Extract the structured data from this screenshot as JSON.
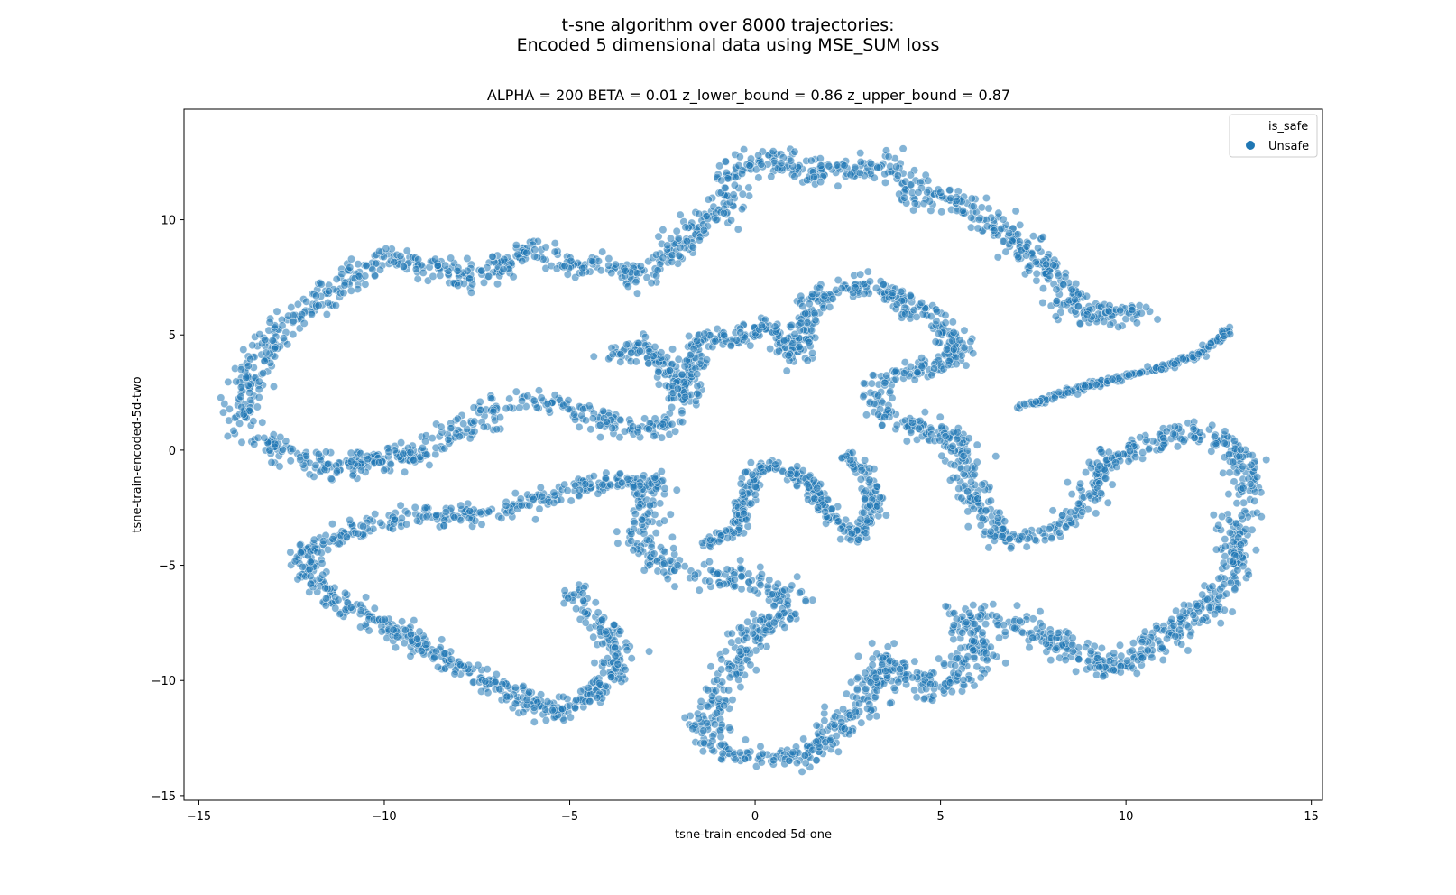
{
  "chart_data": {
    "type": "scatter",
    "suptitle_lines": [
      "t-sne algorithm over 8000 trajectories:",
      "Encoded 5 dimensional data using MSE_SUM loss"
    ],
    "title": "ALPHA = 200  BETA = 0.01  z_lower_bound = 0.86  z_upper_bound = 0.87",
    "xlabel": "tsne-train-encoded-5d-one",
    "ylabel": "tsne-train-encoded-5d-two",
    "xlim": [
      -15.4,
      15.3
    ],
    "ylim": [
      -15.2,
      14.8
    ],
    "xticks": [
      -15,
      -10,
      -5,
      0,
      5,
      10,
      15
    ],
    "yticks": [
      -15,
      -10,
      -5,
      0,
      5,
      10
    ],
    "xtick_labels": [
      "−15",
      "−10",
      "−5",
      "0",
      "5",
      "10",
      "15"
    ],
    "ytick_labels": [
      "−15",
      "−10",
      "−5",
      "0",
      "5",
      "10"
    ],
    "grid": false,
    "legend": {
      "placement": "top-right",
      "title": "is_safe",
      "entries": [
        {
          "label": "Unsafe",
          "color": "#1f77b4"
        }
      ]
    },
    "marker_color": "#1f77b4",
    "marker_alpha": 0.55,
    "point_count": 8000,
    "series": [
      {
        "name": "Unsafe",
        "approximate_paths": [
          {
            "spread": 0.5,
            "points": [
              [
                -13.9,
                1.2
              ],
              [
                -13.5,
                3.5
              ],
              [
                -12.8,
                5.5
              ],
              [
                -11.8,
                6.4
              ],
              [
                -11,
                7.5
              ],
              [
                -10,
                8.2
              ],
              [
                -8.8,
                8.0
              ],
              [
                -8.2,
                7.3
              ],
              [
                -7.2,
                7.8
              ],
              [
                -6,
                8.8
              ],
              [
                -5,
                8.0
              ],
              [
                -4,
                8.0
              ],
              [
                -3.2,
                7.5
              ],
              [
                -2.3,
                8.5
              ],
              [
                -1.5,
                9.5
              ],
              [
                -0.8,
                10.5
              ],
              [
                -0.5,
                12.0
              ],
              [
                0.5,
                12.8
              ],
              [
                1.5,
                12.0
              ],
              [
                2.5,
                12.2
              ],
              [
                3.5,
                12.5
              ],
              [
                4.5,
                11.0
              ],
              [
                5.5,
                10.8
              ],
              [
                6.5,
                9.8
              ],
              [
                7.5,
                8.2
              ],
              [
                8.3,
                7.0
              ],
              [
                8.8,
                6.0
              ],
              [
                9.8,
                5.9
              ],
              [
                10.5,
                6.0
              ]
            ]
          },
          {
            "spread": 0.45,
            "points": [
              [
                -13.5,
                0.5
              ],
              [
                -12.5,
                -0.2
              ],
              [
                -11.5,
                -0.8
              ],
              [
                -10,
                -0.4
              ],
              [
                -9,
                -0.2
              ],
              [
                -8,
                0.8
              ],
              [
                -7,
                1.8
              ],
              [
                -6,
                2.2
              ],
              [
                -5,
                1.8
              ],
              [
                -4,
                1.2
              ],
              [
                -3,
                0.8
              ],
              [
                -2.0,
                1.5
              ]
            ]
          },
          {
            "spread": 0.4,
            "points": [
              [
                -3.8,
                4.0
              ],
              [
                -3.0,
                4.5
              ],
              [
                -2.2,
                3.2
              ],
              [
                -2.0,
                2.0
              ],
              [
                -1.5,
                4.8
              ],
              [
                -0.5,
                4.8
              ],
              [
                0.5,
                5.5
              ],
              [
                1.0,
                4.0
              ],
              [
                1.8,
                6.8
              ],
              [
                3.0,
                7.2
              ],
              [
                4.0,
                6.5
              ],
              [
                5.0,
                5.5
              ],
              [
                5.5,
                4.2
              ],
              [
                4.5,
                3.5
              ],
              [
                3.5,
                3.0
              ],
              [
                3.0,
                2.0
              ],
              [
                4.0,
                1.2
              ],
              [
                5.5,
                0.5
              ],
              [
                5.8,
                -1.5
              ],
              [
                6.5,
                -3.8
              ],
              [
                7.8,
                -3.8
              ],
              [
                8.8,
                -2.5
              ],
              [
                9.5,
                -0.5
              ],
              [
                10.5,
                0.2
              ],
              [
                11.5,
                0.8
              ],
              [
                12.5,
                0.5
              ],
              [
                13.2,
                -0.5
              ],
              [
                13.3,
                -2.0
              ]
            ]
          },
          {
            "spread": 0.12,
            "points": [
              [
                7.0,
                1.8
              ],
              [
                8.0,
                2.3
              ],
              [
                9.0,
                2.8
              ],
              [
                10.0,
                3.2
              ],
              [
                11.0,
                3.6
              ],
              [
                12.0,
                4.2
              ],
              [
                12.8,
                5.2
              ]
            ]
          },
          {
            "spread": 0.5,
            "points": [
              [
                13.0,
                -2.5
              ],
              [
                13.0,
                -4.5
              ],
              [
                12.5,
                -6.5
              ],
              [
                11.5,
                -7.5
              ],
              [
                10.5,
                -8.8
              ],
              [
                9.5,
                -9.5
              ],
              [
                8.5,
                -8.5
              ],
              [
                7.5,
                -8.0
              ],
              [
                6.5,
                -7.0
              ],
              [
                5.5,
                -7.2
              ],
              [
                6.0,
                -9.0
              ],
              [
                5.0,
                -10.5
              ],
              [
                4.0,
                -9.5
              ],
              [
                3.5,
                -9.0
              ],
              [
                3.0,
                -10.8
              ],
              [
                2.0,
                -12.5
              ],
              [
                1.0,
                -13.5
              ],
              [
                0,
                -13.5
              ],
              [
                -1.0,
                -13.0
              ],
              [
                -1.3,
                -11.8
              ],
              [
                -0.8,
                -10.5
              ],
              [
                -0.5,
                -9.0
              ],
              [
                0.3,
                -7.5
              ],
              [
                1.0,
                -6.5
              ],
              [
                0.5,
                -5.8
              ],
              [
                -0.5,
                -5.6
              ],
              [
                -1.5,
                -5.5
              ],
              [
                -2.5,
                -5.0
              ],
              [
                -3.0,
                -4.2
              ],
              [
                -3.0,
                -2.5
              ],
              [
                -2.8,
                -1.2
              ]
            ]
          },
          {
            "spread": 0.4,
            "points": [
              [
                -2.5,
                -1.5
              ],
              [
                -3.5,
                -1.3
              ],
              [
                -4.5,
                -1.5
              ],
              [
                -5.5,
                -2.0
              ],
              [
                -6.5,
                -2.5
              ],
              [
                -8,
                -2.8
              ],
              [
                -9.5,
                -3.0
              ],
              [
                -10.5,
                -3.2
              ],
              [
                -11.5,
                -4.0
              ],
              [
                -12.2,
                -4.5
              ],
              [
                -12.0,
                -5.5
              ],
              [
                -11.0,
                -6.8
              ],
              [
                -10,
                -7.5
              ],
              [
                -9,
                -8.5
              ],
              [
                -8,
                -9.5
              ],
              [
                -6.5,
                -10.5
              ],
              [
                -5.5,
                -11.5
              ],
              [
                -4.5,
                -10.8
              ],
              [
                -3.8,
                -9.5
              ],
              [
                -3.8,
                -8.0
              ],
              [
                -4.5,
                -7.0
              ],
              [
                -5.0,
                -6.0
              ]
            ]
          },
          {
            "spread": 0.25,
            "points": [
              [
                -1.4,
                -4.1
              ],
              [
                -0.5,
                -3.5
              ],
              [
                -0.2,
                -2.0
              ],
              [
                0,
                -0.8
              ],
              [
                0.8,
                -0.8
              ],
              [
                1.5,
                -1.5
              ],
              [
                2.0,
                -2.8
              ],
              [
                2.8,
                -3.8
              ],
              [
                3.2,
                -2.5
              ],
              [
                3.0,
                -1.0
              ],
              [
                2.5,
                -0.2
              ]
            ]
          }
        ]
      }
    ]
  }
}
